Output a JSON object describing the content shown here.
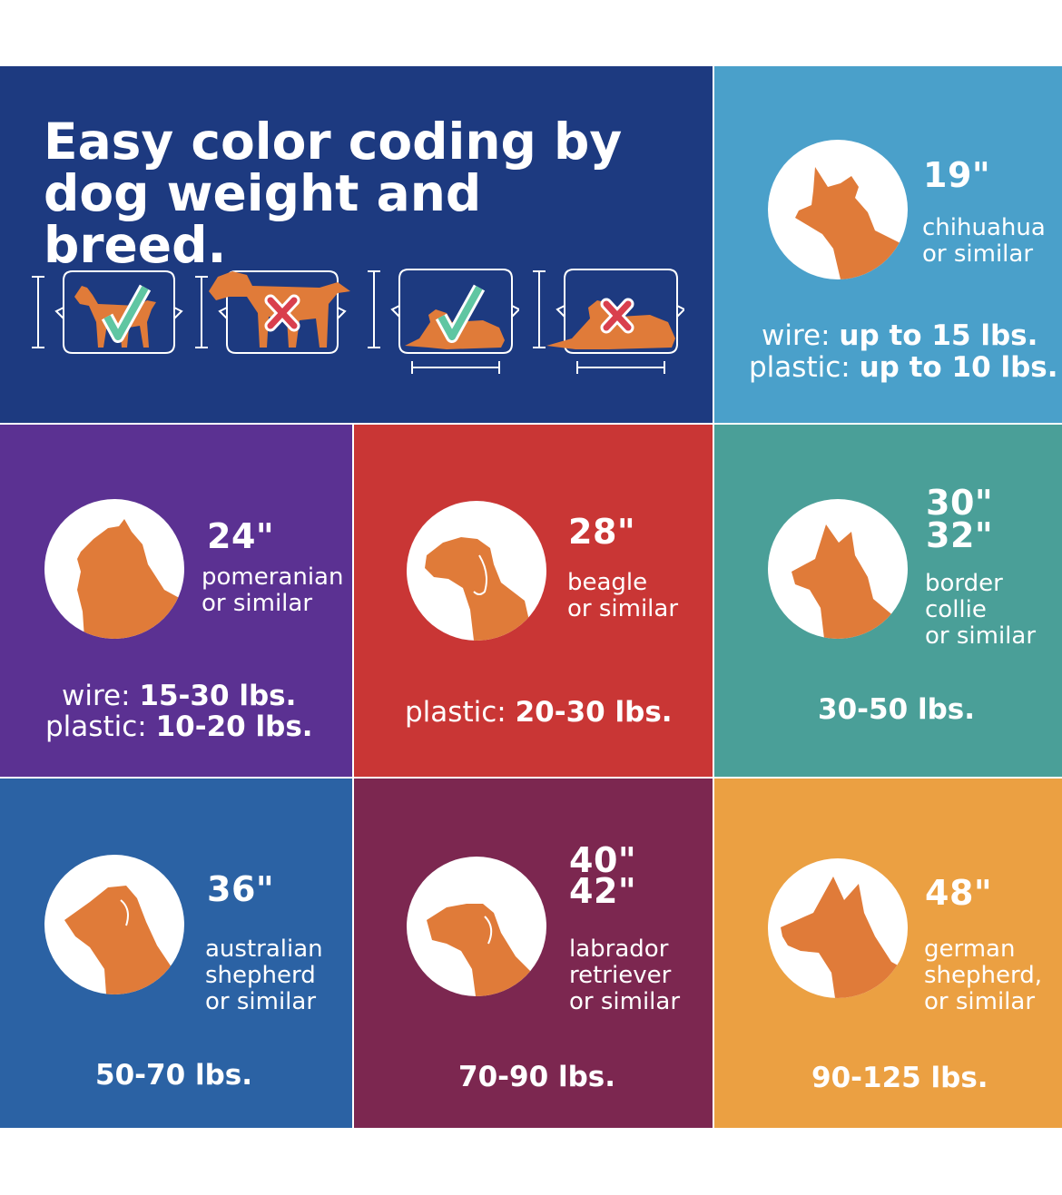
{
  "colors": {
    "navy": "#1d3a80",
    "light_blue": "#4aa0ca",
    "purple": "#5b3192",
    "red": "#c93635",
    "teal": "#4a9f98",
    "blue": "#2b62a4",
    "maroon": "#7c2750",
    "orange": "#eba042",
    "dog_orange": "#e07b39",
    "check_green": "#5fc6a2",
    "x_red": "#d93f4d"
  },
  "header": {
    "title": "Easy color coding by dog weight and breed.",
    "examples": [
      {
        "icon": "standing-dog-fits-icon",
        "result": "check"
      },
      {
        "icon": "standing-dog-too-tall-icon",
        "result": "x"
      },
      {
        "icon": "lying-dog-fits-icon",
        "result": "check"
      },
      {
        "icon": "lying-dog-too-long-icon",
        "result": "x"
      }
    ]
  },
  "cards": [
    {
      "id": "19",
      "icon": "chihuahua-icon",
      "sizes": [
        "19\""
      ],
      "breed": "chihuahua\nor similar",
      "weights": [
        {
          "label": "wire:",
          "value": "up to 15 lbs."
        },
        {
          "label": "plastic:",
          "value": "up to 10 lbs."
        }
      ]
    },
    {
      "id": "24",
      "icon": "pomeranian-icon",
      "sizes": [
        "24\""
      ],
      "breed": "pomeranian\nor similar",
      "weights": [
        {
          "label": "wire:",
          "value": "15-30 lbs."
        },
        {
          "label": "plastic:",
          "value": "10-20 lbs."
        }
      ]
    },
    {
      "id": "28",
      "icon": "beagle-icon",
      "sizes": [
        "28\""
      ],
      "breed": "beagle\nor similar",
      "weights": [
        {
          "label": "plastic:",
          "value": "20-30 lbs."
        }
      ]
    },
    {
      "id": "30",
      "icon": "border-collie-icon",
      "sizes": [
        "30\"",
        "32\""
      ],
      "breed": "border\ncollie\nor similar",
      "weights": [
        {
          "label": "",
          "value": "30-50 lbs."
        }
      ]
    },
    {
      "id": "36",
      "icon": "australian-shepherd-icon",
      "sizes": [
        "36\""
      ],
      "breed": "australian\nshepherd\nor similar",
      "weights": [
        {
          "label": "",
          "value": "50-70 lbs."
        }
      ]
    },
    {
      "id": "40",
      "icon": "labrador-icon",
      "sizes": [
        "40\"",
        "42\""
      ],
      "breed": "labrador\nretriever\nor similar",
      "weights": [
        {
          "label": "",
          "value": "70-90 lbs."
        }
      ]
    },
    {
      "id": "48",
      "icon": "german-shepherd-icon",
      "sizes": [
        "48\""
      ],
      "breed": "german\nshepherd,\nor similar",
      "weights": [
        {
          "label": "",
          "value": "90-125 lbs."
        }
      ]
    }
  ]
}
